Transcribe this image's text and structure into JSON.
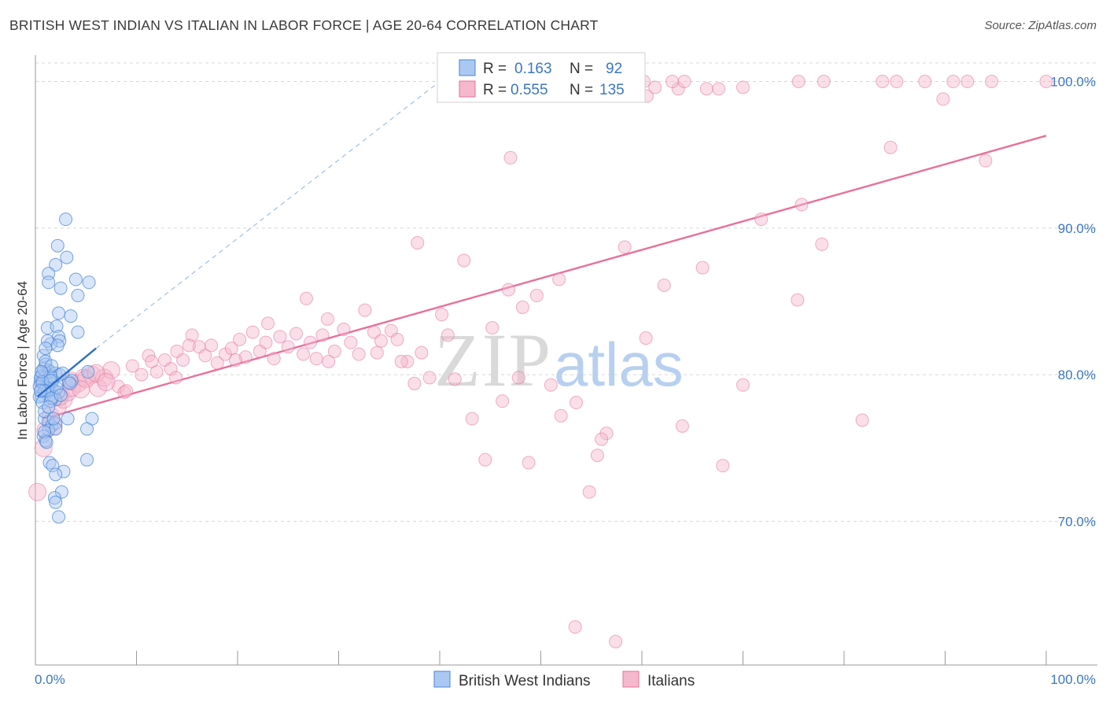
{
  "header": {
    "title": "BRITISH WEST INDIAN VS ITALIAN IN LABOR FORCE | AGE 20-64 CORRELATION CHART",
    "source": "Source: ZipAtlas.com"
  },
  "watermark": {
    "zip": "ZIP",
    "atlas": "atlas"
  },
  "colors": {
    "blue": "#4a86d8",
    "blue_fill": "#aac8f2",
    "pink": "#e8709a",
    "pink_fill": "#f5b8cc",
    "grid": "#d7d7d7",
    "tick_text": "#3b76c5"
  },
  "legend": {
    "rows": [
      {
        "r_label": "R =",
        "r_value": "0.163",
        "n_label": "N =",
        "n_value": "92"
      },
      {
        "r_label": "R =",
        "r_value": "0.555",
        "n_label": "N =",
        "n_value": "135"
      }
    ]
  },
  "chart_data": {
    "type": "scatter",
    "title": "BRITISH WEST INDIAN VS ITALIAN IN LABOR FORCE | AGE 20-64 CORRELATION CHART",
    "xlabel": "",
    "ylabel": "In Labor Force | Age 20-64",
    "xlim": [
      0,
      100
    ],
    "ylim": [
      60.2,
      101.8
    ],
    "x_tick_labels": [
      "0.0%",
      "100.0%"
    ],
    "y_ticks": [
      70,
      80,
      90,
      100
    ],
    "y_tick_labels": [
      "70.0%",
      "80.0%",
      "90.0%",
      "100.0%"
    ],
    "grid": true,
    "legend_position": "top-center",
    "series": [
      {
        "name": "British West Indians",
        "color": "#4a86d8",
        "trend": {
          "x": [
            0.2,
            6.0
          ],
          "y": [
            78.5,
            81.8
          ],
          "extended_x": [
            6.0,
            40.0
          ],
          "extended_y": [
            81.8,
            100.0
          ]
        },
        "points": [
          [
            3.0,
            90.6
          ],
          [
            2.2,
            88.8
          ],
          [
            3.1,
            88.0
          ],
          [
            2.0,
            87.5
          ],
          [
            1.3,
            86.9
          ],
          [
            2.5,
            85.9
          ],
          [
            1.3,
            86.3
          ],
          [
            4.0,
            86.5
          ],
          [
            5.3,
            86.3
          ],
          [
            4.2,
            85.4
          ],
          [
            2.3,
            84.2
          ],
          [
            3.5,
            84.0
          ],
          [
            1.2,
            83.2
          ],
          [
            2.1,
            83.3
          ],
          [
            2.3,
            82.6
          ],
          [
            2.4,
            82.3
          ],
          [
            4.2,
            82.9
          ],
          [
            1.5,
            82.1
          ],
          [
            1.2,
            82.3
          ],
          [
            2.2,
            82.0
          ],
          [
            0.8,
            81.3
          ],
          [
            1.0,
            80.7
          ],
          [
            1.3,
            80.3
          ],
          [
            1.1,
            80.0
          ],
          [
            0.7,
            80.1
          ],
          [
            0.6,
            79.9
          ],
          [
            1.4,
            80.2
          ],
          [
            2.0,
            80.1
          ],
          [
            2.4,
            80.0
          ],
          [
            0.9,
            79.8
          ],
          [
            1.7,
            79.6
          ],
          [
            0.5,
            79.5
          ],
          [
            1.2,
            79.3
          ],
          [
            1.6,
            79.4
          ],
          [
            1.0,
            79.2
          ],
          [
            0.6,
            79.0
          ],
          [
            1.3,
            79.0
          ],
          [
            1.9,
            78.9
          ],
          [
            2.3,
            78.8
          ],
          [
            0.6,
            78.6
          ],
          [
            1.1,
            78.7
          ],
          [
            1.8,
            78.5
          ],
          [
            0.4,
            78.5
          ],
          [
            2.0,
            78.3
          ],
          [
            3.3,
            79.5
          ],
          [
            5.2,
            80.2
          ],
          [
            3.6,
            79.6
          ],
          [
            0.9,
            77.0
          ],
          [
            1.3,
            76.8
          ],
          [
            1.6,
            76.5
          ],
          [
            2.0,
            76.7
          ],
          [
            3.2,
            77.0
          ],
          [
            5.6,
            77.0
          ],
          [
            1.3,
            76.2
          ],
          [
            2.0,
            76.3
          ],
          [
            5.1,
            76.3
          ],
          [
            0.8,
            75.8
          ],
          [
            1.0,
            75.5
          ],
          [
            1.4,
            74.0
          ],
          [
            1.7,
            73.8
          ],
          [
            2.8,
            73.4
          ],
          [
            2.0,
            73.2
          ],
          [
            5.1,
            74.2
          ],
          [
            2.6,
            72.0
          ],
          [
            1.9,
            71.6
          ],
          [
            2.0,
            71.3
          ],
          [
            2.3,
            70.3
          ],
          [
            0.5,
            79.8
          ],
          [
            0.8,
            80.4
          ],
          [
            1.5,
            79.9
          ],
          [
            2.7,
            80.1
          ],
          [
            0.7,
            78.1
          ],
          [
            1.5,
            78.2
          ],
          [
            1.0,
            80.9
          ],
          [
            0.4,
            79.2
          ],
          [
            0.7,
            79.5
          ],
          [
            1.2,
            78.9
          ],
          [
            1.6,
            80.6
          ],
          [
            0.9,
            77.5
          ],
          [
            1.8,
            77.0
          ],
          [
            0.9,
            76.1
          ],
          [
            1.1,
            75.4
          ],
          [
            1.5,
            79.6
          ],
          [
            0.6,
            80.2
          ],
          [
            2.1,
            79.1
          ],
          [
            3.4,
            79.4
          ],
          [
            0.9,
            78.9
          ],
          [
            1.6,
            78.4
          ],
          [
            1.3,
            77.8
          ],
          [
            2.5,
            78.6
          ],
          [
            0.5,
            78.9
          ],
          [
            1.0,
            81.8
          ]
        ]
      },
      {
        "name": "Italians",
        "color": "#e8709a",
        "trend": {
          "x": [
            0.8,
            100.0
          ],
          "y": [
            77.0,
            96.3
          ]
        },
        "points": [
          [
            0.2,
            72.0
          ],
          [
            0.8,
            75.0
          ],
          [
            1.0,
            76.2
          ],
          [
            1.5,
            77.2
          ],
          [
            1.8,
            76.5
          ],
          [
            2.2,
            77.8
          ],
          [
            2.8,
            78.3
          ],
          [
            3.2,
            78.8
          ],
          [
            3.5,
            79.6
          ],
          [
            4.2,
            79.4
          ],
          [
            4.8,
            79.8
          ],
          [
            5.6,
            80.0
          ],
          [
            6.2,
            79.1
          ],
          [
            6.8,
            79.8
          ],
          [
            7.5,
            80.3
          ],
          [
            8.2,
            79.2
          ],
          [
            8.8,
            78.8
          ],
          [
            9.6,
            80.6
          ],
          [
            10.5,
            80.0
          ],
          [
            11.2,
            81.3
          ],
          [
            12.0,
            80.2
          ],
          [
            12.8,
            81.0
          ],
          [
            13.4,
            80.4
          ],
          [
            14.0,
            81.6
          ],
          [
            14.6,
            81.0
          ],
          [
            15.5,
            82.7
          ],
          [
            16.2,
            81.9
          ],
          [
            16.8,
            81.3
          ],
          [
            17.4,
            82.0
          ],
          [
            18.0,
            80.8
          ],
          [
            18.8,
            81.4
          ],
          [
            19.4,
            81.8
          ],
          [
            20.2,
            82.4
          ],
          [
            20.8,
            81.2
          ],
          [
            21.5,
            82.9
          ],
          [
            22.2,
            81.6
          ],
          [
            22.8,
            82.2
          ],
          [
            23.6,
            81.1
          ],
          [
            24.2,
            82.6
          ],
          [
            25.0,
            81.9
          ],
          [
            25.8,
            82.8
          ],
          [
            26.5,
            81.4
          ],
          [
            27.2,
            82.2
          ],
          [
            27.8,
            81.1
          ],
          [
            28.4,
            82.7
          ],
          [
            29.0,
            80.9
          ],
          [
            29.6,
            81.6
          ],
          [
            30.5,
            83.1
          ],
          [
            31.2,
            82.2
          ],
          [
            32.0,
            81.4
          ],
          [
            32.6,
            84.4
          ],
          [
            33.5,
            82.9
          ],
          [
            34.2,
            82.3
          ],
          [
            35.2,
            83.0
          ],
          [
            35.8,
            82.4
          ],
          [
            36.8,
            80.9
          ],
          [
            37.5,
            79.4
          ],
          [
            38.2,
            81.5
          ],
          [
            39.0,
            79.8
          ],
          [
            40.2,
            84.1
          ],
          [
            40.8,
            82.7
          ],
          [
            41.5,
            79.7
          ],
          [
            42.4,
            87.8
          ],
          [
            43.2,
            77.0
          ],
          [
            44.5,
            74.2
          ],
          [
            45.2,
            83.2
          ],
          [
            46.2,
            78.2
          ],
          [
            46.8,
            85.8
          ],
          [
            47.8,
            79.8
          ],
          [
            48.8,
            74.0
          ],
          [
            49.6,
            85.4
          ],
          [
            51.0,
            79.3
          ],
          [
            51.8,
            86.5
          ],
          [
            53.5,
            78.1
          ],
          [
            54.8,
            72.0
          ],
          [
            56.5,
            76.0
          ],
          [
            58.3,
            88.7
          ],
          [
            60.4,
            82.5
          ],
          [
            62.2,
            86.1
          ],
          [
            64.0,
            76.5
          ],
          [
            66.0,
            87.3
          ],
          [
            68.0,
            73.8
          ],
          [
            70.0,
            79.3
          ],
          [
            71.8,
            90.6
          ],
          [
            75.4,
            85.1
          ],
          [
            77.8,
            88.9
          ],
          [
            81.8,
            76.9
          ],
          [
            84.6,
            95.5
          ],
          [
            89.8,
            98.8
          ],
          [
            94.0,
            94.6
          ],
          [
            52.0,
            77.2
          ],
          [
            55.6,
            74.5
          ],
          [
            56.0,
            75.6
          ],
          [
            57.4,
            61.8
          ],
          [
            53.4,
            62.8
          ],
          [
            60.5,
            99.0
          ],
          [
            61.3,
            99.6
          ],
          [
            63.6,
            99.5
          ],
          [
            66.4,
            99.5
          ],
          [
            67.6,
            99.5
          ],
          [
            70.0,
            99.6
          ],
          [
            75.5,
            100.0
          ],
          [
            78.0,
            100.0
          ],
          [
            83.8,
            100.0
          ],
          [
            88.0,
            100.0
          ],
          [
            90.8,
            100.0
          ],
          [
            92.2,
            100.0
          ],
          [
            94.6,
            100.0
          ],
          [
            100.0,
            100.0
          ],
          [
            85.2,
            100.0
          ],
          [
            57.0,
            100.0
          ],
          [
            59.0,
            100.0
          ],
          [
            60.2,
            100.0
          ],
          [
            63.0,
            100.0
          ],
          [
            64.2,
            100.0
          ],
          [
            47.0,
            94.8
          ],
          [
            75.8,
            91.6
          ],
          [
            37.8,
            89.0
          ],
          [
            26.8,
            85.2
          ],
          [
            36.2,
            80.9
          ],
          [
            9.0,
            78.9
          ],
          [
            11.5,
            80.9
          ],
          [
            13.9,
            79.8
          ],
          [
            15.2,
            82.0
          ],
          [
            19.8,
            81.0
          ],
          [
            23.0,
            83.5
          ],
          [
            28.9,
            83.8
          ],
          [
            33.8,
            81.5
          ],
          [
            3.6,
            79.1
          ],
          [
            5.0,
            79.7
          ],
          [
            2.4,
            78.5
          ],
          [
            6.0,
            80.1
          ],
          [
            7.0,
            79.5
          ],
          [
            4.5,
            79.0
          ],
          [
            48.2,
            84.6
          ]
        ]
      }
    ]
  },
  "bottom_legend": {
    "items": [
      {
        "label": "British West Indians"
      },
      {
        "label": "Italians"
      }
    ]
  }
}
